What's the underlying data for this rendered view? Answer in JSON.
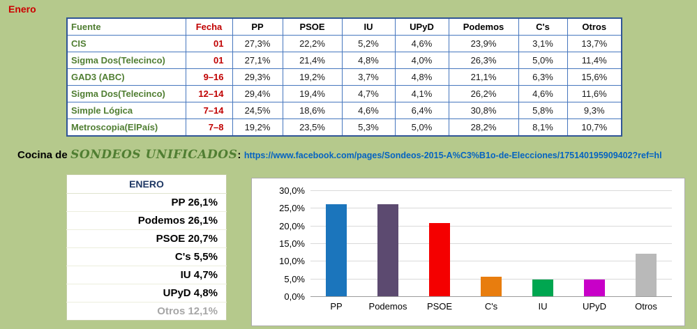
{
  "page": {
    "title": "Enero",
    "background": "#b5c98c"
  },
  "polls_table": {
    "headers": [
      "Fuente",
      "Fecha",
      "PP",
      "PSOE",
      "IU",
      "UPyD",
      "Podemos",
      "C's",
      "Otros"
    ],
    "rows": [
      {
        "fuente": "CIS",
        "fecha": "01",
        "values": [
          "27,3%",
          "22,2%",
          "5,2%",
          "4,6%",
          "23,9%",
          "3,1%",
          "13,7%"
        ]
      },
      {
        "fuente": "Sigma Dos(Telecinco)",
        "fecha": "01",
        "values": [
          "27,1%",
          "21,4%",
          "4,8%",
          "4,0%",
          "26,3%",
          "5,0%",
          "11,4%"
        ]
      },
      {
        "fuente": "GAD3 (ABC)",
        "fecha": "9–16",
        "values": [
          "29,3%",
          "19,2%",
          "3,7%",
          "4,8%",
          "21,1%",
          "6,3%",
          "15,6%"
        ]
      },
      {
        "fuente": "Sigma Dos(Telecinco)",
        "fecha": "12–14",
        "values": [
          "29,4%",
          "19,4%",
          "4,7%",
          "4,1%",
          "26,2%",
          "4,6%",
          "11,6%"
        ]
      },
      {
        "fuente": "Simple Lógica",
        "fecha": "7–14",
        "values": [
          "24,5%",
          "18,6%",
          "4,6%",
          "6,4%",
          "30,8%",
          "5,8%",
          "9,3%"
        ]
      },
      {
        "fuente": "Metroscopia(ElPaís)",
        "fecha": "7–8",
        "values": [
          "19,2%",
          "23,5%",
          "5,3%",
          "5,0%",
          "28,2%",
          "8,1%",
          "10,7%"
        ]
      }
    ]
  },
  "cocina": {
    "prefix": "Cocina de",
    "brand": "SONDEOS UNIFICADOS",
    "separator": ":",
    "link_text": "https://www.facebook.com/pages/Sondeos-2015-A%C3%B1o-de-Elecciones/175140195909402?ref=hl"
  },
  "summary_table": {
    "title": "ENERO",
    "rows": [
      {
        "label": "PP",
        "value": "26,1%",
        "muted": false
      },
      {
        "label": "Podemos",
        "value": "26,1%",
        "muted": false
      },
      {
        "label": "PSOE",
        "value": "20,7%",
        "muted": false
      },
      {
        "label": "C's",
        "value": "5,5%",
        "muted": false
      },
      {
        "label": "IU",
        "value": "4,7%",
        "muted": false
      },
      {
        "label": "UPyD",
        "value": "4,8%",
        "muted": false
      },
      {
        "label": "Otros",
        "value": "12,1%",
        "muted": true
      }
    ]
  },
  "chart_data": {
    "type": "bar",
    "title": "",
    "categories": [
      "PP",
      "Podemos",
      "PSOE",
      "C's",
      "IU",
      "UPyD",
      "Otros"
    ],
    "values": [
      26.1,
      26.1,
      20.7,
      5.5,
      4.7,
      4.8,
      12.1
    ],
    "value_labels": [
      "26,1%",
      "26,1%",
      "20,7%",
      "5,5%",
      "4,7%",
      "4,8%",
      "12,1%"
    ],
    "bar_colors": [
      "#1b75bc",
      "#5c4a70",
      "#f40000",
      "#e87d0e",
      "#00a650",
      "#c800c8",
      "#b9b9b9"
    ],
    "xlabel": "",
    "ylabel": "",
    "ylim": [
      0,
      30
    ],
    "ytick_step": 5,
    "ytick_labels": [
      "30,0%",
      "25,0%",
      "20,0%",
      "15,0%",
      "10,0%",
      "5,0%",
      "0,0%"
    ],
    "grid": true,
    "legend": false
  },
  "colors": {
    "background": "#b5c98c",
    "table_border": "#4576be",
    "source_green": "#507e32",
    "date_red": "#c00000",
    "title_red": "#cc0000",
    "link_blue": "#0563c1",
    "summary_header_navy": "#1f3864",
    "muted_gray": "#a6a6a6"
  }
}
